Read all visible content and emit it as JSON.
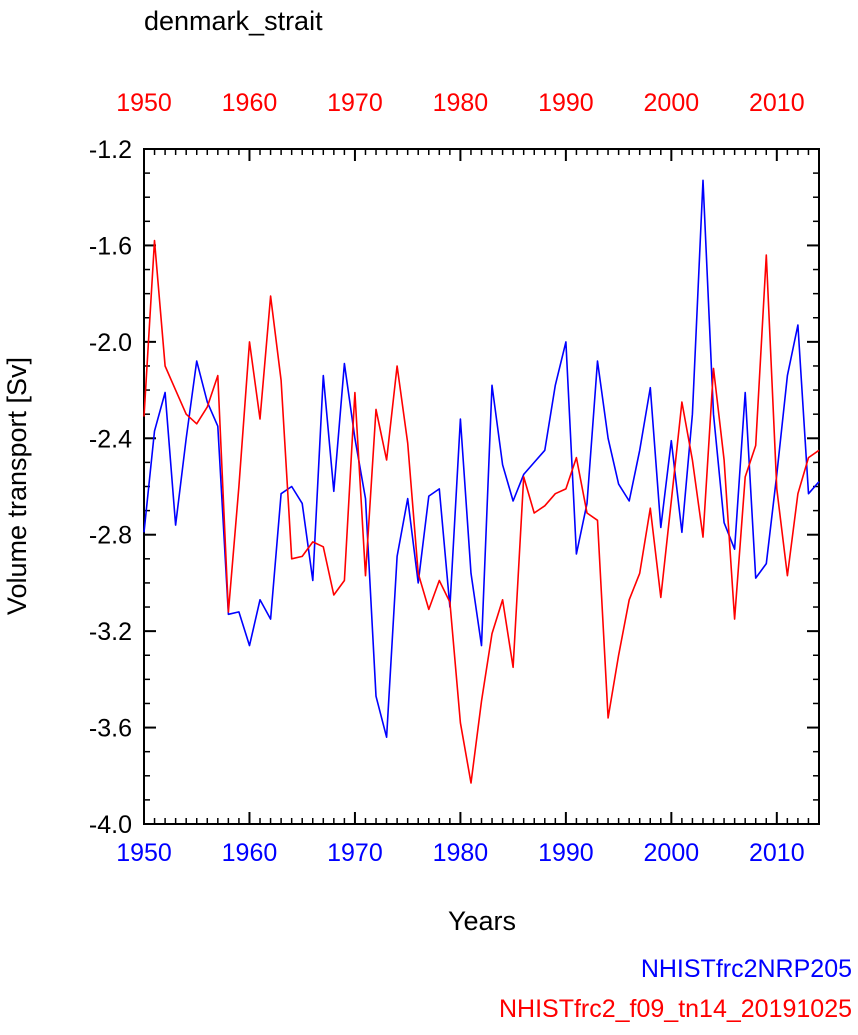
{
  "chart_data": {
    "type": "line",
    "title": "denmark_strait",
    "xlabel": "Years",
    "ylabel": "Volume transport [Sv]",
    "xlim": [
      1950,
      2014
    ],
    "ylim": [
      -4.0,
      -1.2
    ],
    "x_ticks": [
      1950,
      1960,
      1970,
      1980,
      1990,
      2000,
      2010
    ],
    "y_ticks": [
      "-4.0",
      "-3.6",
      "-3.2",
      "-2.8",
      "-2.4",
      "-2.0",
      "-1.6",
      "-1.2"
    ],
    "x": [
      1950,
      1951,
      1952,
      1953,
      1954,
      1955,
      1956,
      1957,
      1958,
      1959,
      1960,
      1961,
      1962,
      1963,
      1964,
      1965,
      1966,
      1967,
      1968,
      1969,
      1970,
      1971,
      1972,
      1973,
      1974,
      1975,
      1976,
      1977,
      1978,
      1979,
      1980,
      1981,
      1982,
      1983,
      1984,
      1985,
      1986,
      1987,
      1988,
      1989,
      1990,
      1991,
      1992,
      1993,
      1994,
      1995,
      1996,
      1997,
      1998,
      1999,
      2000,
      2001,
      2002,
      2003,
      2004,
      2005,
      2006,
      2007,
      2008,
      2009,
      2010,
      2011,
      2012,
      2013,
      2014
    ],
    "series": [
      {
        "name": "NHISTfrc2NRP205",
        "color": "#0000ff",
        "values": [
          -2.79,
          -2.37,
          -2.21,
          -2.76,
          -2.4,
          -2.08,
          -2.25,
          -2.35,
          -3.13,
          -3.12,
          -3.26,
          -3.07,
          -3.15,
          -2.63,
          -2.6,
          -2.67,
          -2.99,
          -2.14,
          -2.62,
          -2.09,
          -2.4,
          -2.65,
          -3.47,
          -3.64,
          -2.89,
          -2.65,
          -3.0,
          -2.64,
          -2.61,
          -3.1,
          -2.32,
          -2.96,
          -3.26,
          -2.18,
          -2.51,
          -2.66,
          -2.55,
          -2.5,
          -2.45,
          -2.18,
          -2.0,
          -2.88,
          -2.67,
          -2.08,
          -2.4,
          -2.59,
          -2.66,
          -2.45,
          -2.19,
          -2.77,
          -2.41,
          -2.79,
          -2.3,
          -1.33,
          -2.3,
          -2.75,
          -2.86,
          -2.21,
          -2.98,
          -2.92,
          -2.55,
          -2.14,
          -1.93,
          -2.63,
          -2.58
        ]
      },
      {
        "name": "NHISTfrc2_f09_tn14_20191025",
        "color": "#ff0000",
        "values": [
          -2.31,
          -1.58,
          -2.1,
          -2.2,
          -2.3,
          -2.34,
          -2.27,
          -2.14,
          -3.12,
          -2.6,
          -2.0,
          -2.32,
          -1.81,
          -2.16,
          -2.9,
          -2.89,
          -2.83,
          -2.85,
          -3.05,
          -2.99,
          -2.21,
          -2.97,
          -2.28,
          -2.49,
          -2.1,
          -2.42,
          -2.96,
          -3.11,
          -2.99,
          -3.08,
          -3.58,
          -3.83,
          -3.49,
          -3.21,
          -3.07,
          -3.35,
          -2.56,
          -2.71,
          -2.68,
          -2.63,
          -2.61,
          -2.48,
          -2.71,
          -2.74,
          -3.56,
          -3.3,
          -3.07,
          -2.96,
          -2.69,
          -3.06,
          -2.66,
          -2.25,
          -2.49,
          -2.81,
          -2.11,
          -2.49,
          -3.15,
          -2.56,
          -2.43,
          -1.64,
          -2.61,
          -2.97,
          -2.63,
          -2.48,
          -2.45
        ]
      }
    ],
    "legend": "bottom-right"
  }
}
